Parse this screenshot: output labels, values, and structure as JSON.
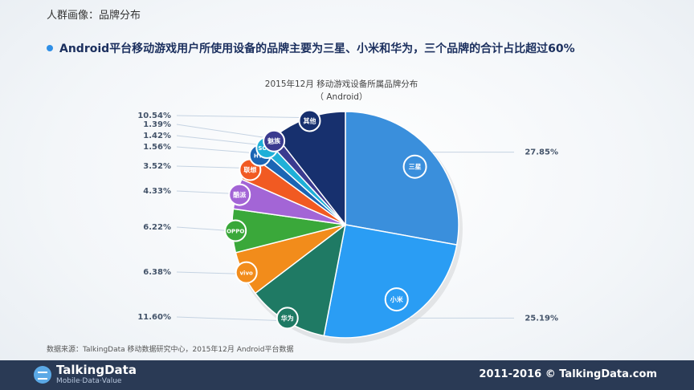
{
  "header": {
    "section": "人群画像：品牌分布",
    "headline": "Android平台移动游戏用户所使用设备的品牌主要为三星、小米和华为，三个品牌的合计占比超过60%"
  },
  "chart_data": {
    "type": "pie",
    "title": "2015年12月  移动游戏设备所属品牌分布",
    "subtitle": "（ Android）",
    "slices": [
      {
        "name": "三星",
        "value": 27.85,
        "label": "27.85%",
        "color": "#3a8fdc"
      },
      {
        "name": "小米",
        "value": 25.19,
        "label": "25.19%",
        "color": "#2a9df4"
      },
      {
        "name": "华为",
        "value": 11.6,
        "label": "11.60%",
        "color": "#1f7a64"
      },
      {
        "name": "vivo",
        "value": 6.38,
        "label": "6.38%",
        "color": "#f28c1b"
      },
      {
        "name": "OPPO",
        "value": 6.22,
        "label": "6.22%",
        "color": "#3aa83a"
      },
      {
        "name": "酷派",
        "value": 4.33,
        "label": "4.33%",
        "color": "#a365d6"
      },
      {
        "name": "联想",
        "value": 3.52,
        "label": "3.52%",
        "color": "#f15a22"
      },
      {
        "name": "HTC",
        "value": 1.56,
        "label": "1.56%",
        "color": "#1b65b4"
      },
      {
        "name": "SONY",
        "value": 1.42,
        "label": "1.42%",
        "color": "#1fb0d8"
      },
      {
        "name": "魅族",
        "value": 1.39,
        "label": "1.39%",
        "color": "#3b3b8f"
      },
      {
        "name": "其他",
        "value": 10.54,
        "label": "10.54%",
        "color": "#17306e"
      }
    ]
  },
  "source": "数据来源：TalkingData  移动数据研究中心，2015年12月  Android平台数据",
  "footer": {
    "logo_name": "TalkingData",
    "logo_sub": "Mobile·Data·Value",
    "copyright": "2011-2016 © TalkingData.com"
  }
}
